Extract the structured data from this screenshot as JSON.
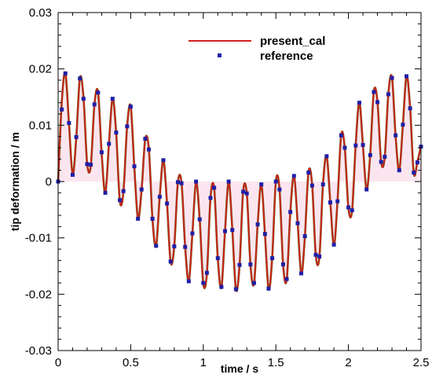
{
  "chart_data": {
    "type": "line",
    "title": "",
    "xlabel": "time / s",
    "ylabel": "tip deformation / m",
    "xlim": [
      0,
      2.5
    ],
    "ylim": [
      -0.03,
      0.03
    ],
    "x_ticks": [
      "0",
      "0.5",
      "1",
      "1.5",
      "2",
      "2.5"
    ],
    "y_ticks": [
      "-0.03",
      "-0.02",
      "-0.01",
      "0",
      "0.01",
      "0.02",
      "0.03"
    ],
    "grid": false,
    "legend_position": "top-right",
    "series": [
      {
        "name": "present_cal",
        "style": "line",
        "color": "#d21e1e",
        "x": [
          0,
          0.025,
          0.05,
          0.075,
          0.1,
          0.125,
          0.15,
          0.175,
          0.2,
          0.225,
          0.25,
          0.275,
          0.3,
          0.325,
          0.35,
          0.375,
          0.4,
          0.425,
          0.45,
          0.475,
          0.5,
          0.525,
          0.55,
          0.575,
          0.6,
          0.625,
          0.65,
          0.675,
          0.7,
          0.725,
          0.75,
          0.775,
          0.8,
          0.825,
          0.85,
          0.875,
          0.9,
          0.925,
          0.95,
          0.975,
          1.0,
          1.025,
          1.05,
          1.075,
          1.1,
          1.125,
          1.15,
          1.175,
          1.2,
          1.225,
          1.25,
          1.275,
          1.3,
          1.325,
          1.35,
          1.375,
          1.4,
          1.425,
          1.45,
          1.475,
          1.5,
          1.525,
          1.55,
          1.575,
          1.6,
          1.625,
          1.65,
          1.675,
          1.7,
          1.725,
          1.75,
          1.775,
          1.8,
          1.825,
          1.85,
          1.875,
          1.9,
          1.925,
          1.95,
          1.975,
          2.0,
          2.025,
          2.05,
          2.075,
          2.1,
          2.125,
          2.15,
          2.175,
          2.2,
          2.225,
          2.25,
          2.275,
          2.3,
          2.325,
          2.35,
          2.375,
          2.4,
          2.425,
          2.45,
          2.475,
          2.5
        ],
        "y": [
          0.0,
          0.0141,
          0.0193,
          0.0102,
          0.0013,
          0.0078,
          0.0184,
          0.0149,
          0.0032,
          0.0028,
          0.0136,
          0.0159,
          0.005,
          -0.0021,
          0.0067,
          0.0148,
          0.0086,
          -0.0034,
          -0.0018,
          0.0097,
          0.0134,
          0.0026,
          -0.0066,
          -0.0015,
          0.0075,
          0.0058,
          -0.0067,
          -0.0115,
          -0.0027,
          0.0039,
          -0.0038,
          -0.0143,
          -0.0115,
          -0.0002,
          -0.0002,
          -0.0115,
          -0.0178,
          -0.0093,
          -0.0001,
          -0.0066,
          -0.0181,
          -0.0163,
          -0.0028,
          -0.0012,
          -0.0137,
          -0.0188,
          -0.0087,
          0.0,
          -0.0085,
          -0.0192,
          -0.0149,
          -0.0017,
          -0.0022,
          -0.0148,
          -0.0181,
          -0.0075,
          -0.0004,
          -0.0094,
          -0.0191,
          -0.0135,
          0.0,
          -0.0013,
          -0.0148,
          -0.0174,
          -0.0053,
          0.0011,
          -0.0073,
          -0.0164,
          -0.0098,
          0.0017,
          -0.0006,
          -0.0131,
          -0.0134,
          -0.0004,
          0.0046,
          -0.0036,
          -0.0113,
          -0.0034,
          0.0083,
          0.0059,
          -0.0047,
          -0.0052,
          0.0065,
          0.0141,
          0.0064,
          -0.0015,
          0.0048,
          0.016,
          0.0142,
          0.0036,
          0.0043,
          0.0156,
          0.0185,
          0.0081,
          0.0019,
          0.01,
          0.0188,
          0.0131,
          0.0015,
          0.0035,
          0.0063
        ]
      },
      {
        "name": "reference",
        "style": "markers",
        "color": "#1f1fa8",
        "x": [
          0.0,
          0.025,
          0.05,
          0.075,
          0.1,
          0.125,
          0.15,
          0.175,
          0.2,
          0.225,
          0.25,
          0.275,
          0.3,
          0.325,
          0.35,
          0.375,
          0.4,
          0.425,
          0.45,
          0.475,
          0.5,
          0.525,
          0.55,
          0.575,
          0.6,
          0.625,
          0.65,
          0.675,
          0.7,
          0.725,
          0.75,
          0.775,
          0.8,
          0.825,
          0.85,
          0.875,
          0.9,
          0.925,
          0.95,
          0.975,
          1.0,
          1.025,
          1.05,
          1.075,
          1.1,
          1.125,
          1.15,
          1.175,
          1.2,
          1.225,
          1.25,
          1.275,
          1.3,
          1.325,
          1.35,
          1.375,
          1.4,
          1.425,
          1.45,
          1.475,
          1.5,
          1.525,
          1.55,
          1.575,
          1.6,
          1.625,
          1.65,
          1.675,
          1.7,
          1.725,
          1.75,
          1.775,
          1.8,
          1.825,
          1.85,
          1.875,
          1.9,
          1.925,
          1.95,
          1.975,
          2.0,
          2.025,
          2.05,
          2.075,
          2.1,
          2.125,
          2.15,
          2.175,
          2.2,
          2.225,
          2.25,
          2.275,
          2.3,
          2.325,
          2.35,
          2.375,
          2.4,
          2.425,
          2.45,
          2.475,
          2.5
        ],
        "y": [
          0.0,
          0.0128,
          0.0192,
          0.0104,
          0.0012,
          0.0079,
          0.0183,
          0.0147,
          0.0031,
          0.003,
          0.0137,
          0.0158,
          0.0052,
          -0.002,
          0.0067,
          0.0147,
          0.0087,
          -0.0033,
          -0.0017,
          0.0098,
          0.0133,
          0.0027,
          -0.0066,
          -0.0014,
          0.0076,
          0.0057,
          -0.0066,
          -0.0114,
          -0.0027,
          0.0038,
          -0.0039,
          -0.0142,
          -0.0115,
          -0.0001,
          -0.0003,
          -0.0116,
          -0.0177,
          -0.0092,
          0.0,
          -0.0067,
          -0.018,
          -0.0162,
          -0.0029,
          -0.0011,
          -0.0136,
          -0.0187,
          -0.0088,
          0.0,
          -0.0086,
          -0.0191,
          -0.0148,
          -0.0018,
          -0.0021,
          -0.0147,
          -0.018,
          -0.0076,
          -0.0005,
          -0.0093,
          -0.019,
          -0.0136,
          0.0,
          -0.0014,
          -0.0147,
          -0.0173,
          -0.0054,
          0.001,
          -0.0074,
          -0.0163,
          -0.0097,
          0.0016,
          -0.0007,
          -0.013,
          -0.0133,
          -0.0005,
          0.0045,
          -0.0037,
          -0.0112,
          -0.0035,
          0.0082,
          0.006,
          -0.0046,
          -0.0051,
          0.0064,
          0.014,
          0.0065,
          -0.0014,
          0.0047,
          0.0159,
          0.0141,
          0.0035,
          0.0044,
          0.0155,
          0.0184,
          0.0082,
          0.002,
          0.0101,
          0.0187,
          0.013,
          0.0016,
          0.0034,
          0.0062
        ]
      }
    ]
  }
}
